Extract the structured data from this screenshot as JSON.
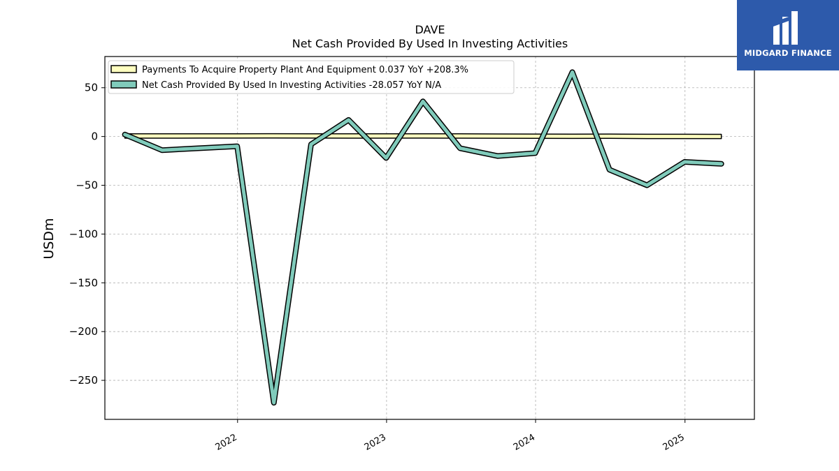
{
  "brand": {
    "name": "MIDGARD FINANCE",
    "bg_color": "#2d5aab"
  },
  "chart_data": {
    "type": "line",
    "title": "DAVE",
    "subtitle": "Net Cash Provided By Used In Investing Activities",
    "xlabel": "",
    "ylabel": "USDm",
    "ylim": [
      -290,
      82
    ],
    "xlim": [
      "2021-02-10",
      "2025-06-20"
    ],
    "yticks": [
      50,
      0,
      -50,
      -100,
      -150,
      -200,
      -250
    ],
    "ytick_labels": [
      "50",
      "0",
      "−50",
      "−100",
      "−150",
      "−200",
      "−250"
    ],
    "xticks": [
      "2022-01-01",
      "2023-01-01",
      "2024-01-01",
      "2025-01-01"
    ],
    "xtick_labels": [
      "2022",
      "2023",
      "2024",
      "2025"
    ],
    "grid": true,
    "legend_position": "top-left",
    "series": [
      {
        "name": "Payments To Acquire Property Plant And Equipment",
        "legend_label": "Payments To Acquire Property Plant And Equipment  0.037 YoY +208.3%",
        "style": "band",
        "color": "#ffffc0",
        "x": [
          "2021-03-31",
          "2021-06-30",
          "2021-09-30",
          "2021-12-31",
          "2022-03-31",
          "2022-06-30",
          "2022-09-30",
          "2022-12-31",
          "2023-03-31",
          "2023-06-30",
          "2023-09-30",
          "2023-12-31",
          "2024-03-31",
          "2024-06-30",
          "2024-09-30",
          "2024-12-31",
          "2025-03-31"
        ],
        "values": [
          0.5,
          0.5,
          0.6,
          0.6,
          0.7,
          0.6,
          0.5,
          0.5,
          0.6,
          0.5,
          0.4,
          0.3,
          0.2,
          0.3,
          0.1,
          0.1,
          0.037
        ]
      },
      {
        "name": "Net Cash Provided By Used In Investing Activities",
        "legend_label": "Net Cash Provided By Used In Investing Activities  -28.057 YoY N/A",
        "style": "line",
        "color": "#80cbbb",
        "x": [
          "2021-03-31",
          "2021-06-30",
          "2021-09-30",
          "2021-12-31",
          "2022-03-31",
          "2022-06-30",
          "2022-09-30",
          "2022-12-31",
          "2023-03-31",
          "2023-06-30",
          "2023-09-30",
          "2023-12-31",
          "2024-03-31",
          "2024-06-30",
          "2024-09-30",
          "2024-12-31",
          "2025-03-31"
        ],
        "values": [
          2,
          -14,
          -12,
          -10,
          -273,
          -8,
          17,
          -22,
          36,
          -12,
          -20,
          -17,
          66,
          -34,
          -50,
          -26,
          -28.057
        ]
      }
    ]
  }
}
